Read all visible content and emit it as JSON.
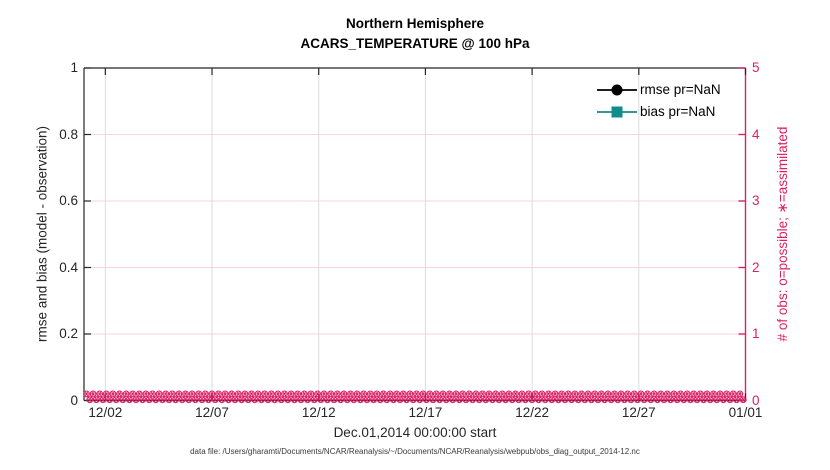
{
  "title": {
    "line1": "Northern Hemisphere",
    "line2": "ACARS_TEMPERATURE @ 100 hPa"
  },
  "chart_data": {
    "type": "line",
    "title": "Northern Hemisphere",
    "subtitle": "ACARS_TEMPERATURE @ 100 hPa",
    "xlabel": "Dec.01,2014 00:00:00 start",
    "x_range_days": [
      0,
      31
    ],
    "x_tick_days": [
      1,
      6,
      11,
      16,
      21,
      26,
      31
    ],
    "x_tick_labels": [
      "12/02",
      "12/07",
      "12/12",
      "12/17",
      "12/22",
      "12/27",
      "01/01"
    ],
    "left_axis": {
      "label": "rmse and bias (model - observation)",
      "tick_values": [
        0,
        0.2,
        0.4,
        0.6,
        0.8,
        1
      ],
      "tick_labels": [
        "0",
        "0.2",
        "0.4",
        "0.6",
        "0.8",
        "1"
      ],
      "range": [
        0,
        1
      ],
      "color": "#262626"
    },
    "right_axis": {
      "label": "# of obs: o=possible; ∗=assimilated",
      "tick_values": [
        0,
        1,
        2,
        3,
        4,
        5
      ],
      "tick_labels": [
        "0",
        "1",
        "2",
        "3",
        "4",
        "5"
      ],
      "range": [
        0,
        5
      ],
      "color": "#dc1e63"
    },
    "series": [
      {
        "name": "rmse pr=NaN",
        "axis": "left",
        "marker": "filled-circle",
        "color": "#000000",
        "values": "NaN (no curve plotted)"
      },
      {
        "name": "bias pr=NaN",
        "axis": "left",
        "marker": "filled-square",
        "color": "#128b8b",
        "values": "NaN (no curve plotted)"
      },
      {
        "name": "# possible obs (o)",
        "axis": "right",
        "marker": "o",
        "color": "#dc1e63",
        "constant_value": 0,
        "extent": "every time bin from 12/01 through 01/01"
      },
      {
        "name": "# assimilated obs (∗)",
        "axis": "right",
        "marker": "∗",
        "color": "#dc1e63",
        "constant_value": 0,
        "extent": "every time bin from 12/01 through 01/01"
      }
    ],
    "grid": {
      "vertical_color": "#dcdcdc",
      "horizontal_color": "#f8d3e0",
      "grid_on": true
    },
    "legend_position": "top-right-inside"
  },
  "legend": {
    "items": [
      {
        "label": "rmse pr=NaN",
        "color": "#000000",
        "marker": "filled-circle"
      },
      {
        "label": "bias pr=NaN",
        "color": "#128b8b",
        "marker": "filled-square"
      }
    ]
  },
  "footer": {
    "data_file_note": "data file: /Users/gharamti/Documents/NCAR/Reanalysis/~/Documents/NCAR/Reanalysis/webpub/obs_diag_output_2014-12.nc"
  },
  "colors": {
    "magenta": "#dc1e63",
    "teal": "#128b8b",
    "axis_dark": "#262626",
    "grid_gray": "#dcdcdc",
    "grid_pink": "#f8d3e0"
  }
}
